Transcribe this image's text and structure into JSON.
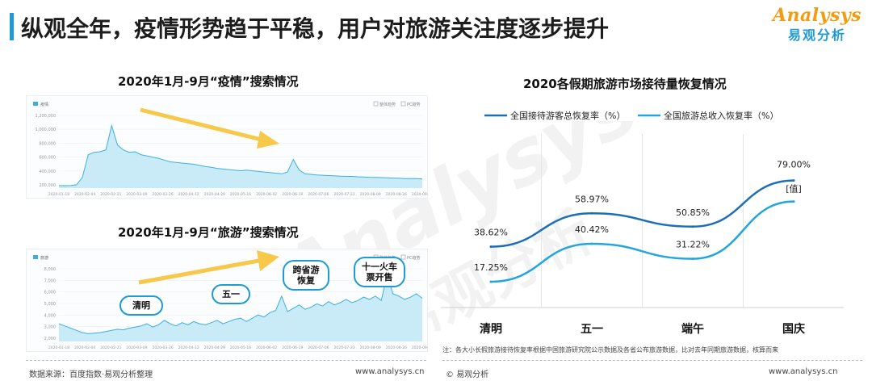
{
  "header": {
    "title": "纵观全年，疫情形势趋于平稳，用户对旅游关注度逐步提升",
    "logo_en": "Analysys",
    "logo_cn": "易观分析"
  },
  "left_top": {
    "title": "2020年1月-9月“疫情”搜索情况",
    "legend_series": "疫情",
    "legend_opts": [
      "整体趋势",
      "PC趋势"
    ],
    "y_ticks": [
      "1,200,000",
      "1,000,000",
      "800,000",
      "600,000",
      "400,000",
      "200,000"
    ],
    "x_ticks": [
      "2020-01-18",
      "2020-02-04",
      "2020-02-21",
      "2020-03-09",
      "2020-03-26",
      "2020-04-12",
      "2020-04-29",
      "2020-05-16",
      "2020-06-02",
      "2020-06-19",
      "2020-07-06",
      "2020-07-23",
      "2020-08-09",
      "2020-08-26",
      "2020-09-12"
    ],
    "values": [
      40,
      40,
      42,
      55,
      180,
      560,
      600,
      610,
      640,
      1050,
      720,
      640,
      600,
      610,
      560,
      540,
      520,
      500,
      470,
      440,
      430,
      420,
      410,
      400,
      380,
      360,
      350,
      330,
      320,
      310,
      300,
      290,
      300,
      290,
      280,
      270,
      260,
      250,
      240,
      270,
      480,
      300,
      240,
      230,
      220,
      215,
      210,
      205,
      200,
      198,
      196,
      190,
      185,
      182,
      180,
      176,
      172,
      168,
      165,
      160,
      158,
      160,
      155
    ]
  },
  "left_bottom": {
    "title": "2020年1月-9月“旅游”搜索情况",
    "legend_series": "旅游",
    "legend_opts": [
      "整体趋势",
      "PC趋势"
    ],
    "y_ticks": [
      "8,000",
      "7,000",
      "6,000",
      "5,000",
      "4,000",
      "3,000",
      "2,000"
    ],
    "x_ticks": [
      "2020-01-18",
      "2020-02-04",
      "2020-02-21",
      "2020-03-09",
      "2020-03-26",
      "2020-04-12",
      "2020-04-29",
      "2020-05-16",
      "2020-06-02",
      "2020-06-19",
      "2020-07-06",
      "2020-07-23",
      "2020-08-09",
      "2020-08-26",
      "2020-09-12"
    ],
    "values": [
      3100,
      2900,
      2700,
      2500,
      2300,
      2200,
      2250,
      2300,
      2400,
      2500,
      2600,
      2550,
      2700,
      2800,
      2900,
      3100,
      2800,
      3000,
      3400,
      3100,
      2900,
      3200,
      3000,
      3300,
      3100,
      3000,
      3200,
      3400,
      3100,
      3300,
      3500,
      3600,
      3300,
      3600,
      3900,
      3700,
      4100,
      4300,
      5600,
      4200,
      4500,
      4800,
      4400,
      4600,
      4900,
      4700,
      5100,
      4800,
      5000,
      5300,
      5000,
      5200,
      5500,
      5300,
      5600,
      5200,
      7500,
      5800,
      5600,
      5300,
      5500,
      5800,
      5400
    ],
    "bubbles": [
      "清明",
      "五一",
      "跨省游恢复",
      "十一火车票开售"
    ]
  },
  "chart_data": {
    "type": "line",
    "title": "2020各假期旅游市场接待量恢复情况",
    "categories": [
      "清明",
      "五一",
      "端午",
      "国庆"
    ],
    "series": [
      {
        "name": "全国接待游客总恢复率（%）",
        "values": [
          38.62,
          58.97,
          50.85,
          79.0
        ],
        "labels": [
          "38.62%",
          "58.97%",
          "50.85%",
          "79.00%"
        ],
        "color": "#1b6fb8"
      },
      {
        "name": "全国旅游总收入恢复率（%）",
        "values": [
          17.25,
          40.42,
          31.22,
          null
        ],
        "labels": [
          "17.25%",
          "40.42%",
          "31.22%",
          "[值]"
        ],
        "color": "#23a6e0"
      }
    ],
    "legend_position": "top",
    "grid": "vertical"
  },
  "footer": {
    "source": "数据来源：百度指数·易观分析整理",
    "url_left": "www.analysys.cn",
    "brand": "易观分析",
    "url_right": "www.analysys.cn",
    "note": "注：各大小长假旅游接待恢复率根据中国旅游研究院公示数据及各省公布旅游数据，比对去年同期旅游数据，核算而来"
  }
}
